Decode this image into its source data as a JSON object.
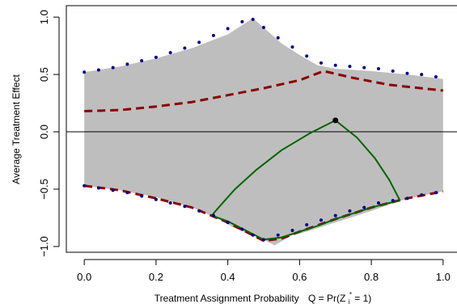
{
  "chart_data": {
    "type": "line",
    "title": "",
    "xlabel": "Treatment Assignment Probability",
    "xlabel_formula": {
      "prefix": "Q = Pr(Z",
      "subscript": "i",
      "superscript": "*",
      "suffix": " = 1)"
    },
    "ylabel": "Average Treatment Effect",
    "xlim": [
      -0.05,
      1.05
    ],
    "ylim": [
      -1.05,
      1.1
    ],
    "x_ticks": [
      0.0,
      0.2,
      0.4,
      0.6,
      0.8,
      1.0
    ],
    "x_tick_labels": [
      "0.0",
      "0.2",
      "0.4",
      "0.6",
      "0.8",
      "1.0"
    ],
    "y_ticks": [
      -1.0,
      -0.5,
      0.0,
      0.5,
      1.0
    ],
    "y_tick_labels": [
      "−1.0",
      "−0.5",
      "0.0",
      "0.5",
      "1.0"
    ],
    "reference_line_y": 0.0,
    "colors": {
      "band": "#bebebe",
      "dotted_bounds": "#00008b",
      "dashed_bounds": "#8b0000",
      "green_curve": "#006400",
      "point": "#000000",
      "reference_line": "#000000"
    },
    "series": [
      {
        "style": "band",
        "x": [
          0.0,
          0.1,
          0.2,
          0.3,
          0.4,
          0.47,
          0.55,
          0.6,
          0.65,
          0.7,
          0.8,
          0.9,
          1.0,
          1.0,
          0.95,
          0.88,
          0.8,
          0.7,
          0.62,
          0.58,
          0.53,
          0.5,
          0.42,
          0.36,
          0.3,
          0.2,
          0.1,
          0.0
        ],
        "y": [
          0.52,
          0.57,
          0.64,
          0.73,
          0.85,
          0.99,
          0.77,
          0.67,
          0.58,
          0.55,
          0.53,
          0.5,
          0.46,
          -0.52,
          -0.55,
          -0.6,
          -0.69,
          -0.79,
          -0.87,
          -0.9,
          -0.99,
          -0.94,
          -0.84,
          -0.74,
          -0.66,
          -0.57,
          -0.51,
          -0.47
        ]
      },
      {
        "style": "dotted",
        "x": [
          0.0,
          0.04,
          0.08,
          0.12,
          0.16,
          0.2,
          0.24,
          0.28,
          0.32,
          0.36,
          0.4,
          0.44,
          0.47,
          0.5,
          0.54,
          0.58,
          0.62,
          0.66,
          0.7,
          0.74,
          0.78,
          0.82,
          0.86,
          0.9,
          0.94,
          0.98
        ],
        "y": [
          0.52,
          0.54,
          0.56,
          0.59,
          0.62,
          0.65,
          0.69,
          0.73,
          0.78,
          0.84,
          0.9,
          0.96,
          0.98,
          0.91,
          0.82,
          0.74,
          0.66,
          0.6,
          0.58,
          0.57,
          0.56,
          0.55,
          0.53,
          0.51,
          0.5,
          0.48
        ]
      },
      {
        "style": "dotted",
        "x": [
          0.0,
          0.04,
          0.08,
          0.12,
          0.16,
          0.2,
          0.24,
          0.28,
          0.32,
          0.36,
          0.4,
          0.44,
          0.47,
          0.5,
          0.54,
          0.58,
          0.62,
          0.66,
          0.7,
          0.74,
          0.78,
          0.82,
          0.86,
          0.9,
          0.94,
          0.98
        ],
        "y": [
          -0.47,
          -0.49,
          -0.51,
          -0.53,
          -0.56,
          -0.59,
          -0.62,
          -0.65,
          -0.69,
          -0.73,
          -0.79,
          -0.85,
          -0.9,
          -0.94,
          -0.9,
          -0.86,
          -0.81,
          -0.77,
          -0.73,
          -0.69,
          -0.66,
          -0.62,
          -0.6,
          -0.58,
          -0.55,
          -0.53
        ]
      },
      {
        "style": "dashed",
        "x": [
          0.0,
          0.1,
          0.2,
          0.3,
          0.4,
          0.5,
          0.6,
          0.667,
          0.75,
          0.85,
          1.0
        ],
        "y": [
          0.18,
          0.19,
          0.22,
          0.26,
          0.32,
          0.38,
          0.45,
          0.53,
          0.47,
          0.41,
          0.36
        ]
      },
      {
        "style": "dashed",
        "x": [
          0.0,
          0.1,
          0.2,
          0.3,
          0.4,
          0.5,
          0.55,
          0.6,
          0.7,
          0.8,
          0.9,
          1.0
        ],
        "y": [
          -0.47,
          -0.51,
          -0.58,
          -0.66,
          -0.79,
          -0.95,
          -0.93,
          -0.87,
          -0.76,
          -0.66,
          -0.58,
          -0.52
        ]
      },
      {
        "style": "solid",
        "x": [
          0.7,
          0.63,
          0.55,
          0.48,
          0.42,
          0.38,
          0.355
        ],
        "y": [
          0.1,
          -0.01,
          -0.16,
          -0.33,
          -0.5,
          -0.64,
          -0.73
        ]
      },
      {
        "style": "solid",
        "x": [
          0.7,
          0.76,
          0.81,
          0.85,
          0.88
        ],
        "y": [
          0.1,
          -0.05,
          -0.23,
          -0.42,
          -0.6
        ]
      },
      {
        "style": "solid",
        "x": [
          0.355,
          0.4,
          0.45,
          0.5,
          0.55,
          0.6,
          0.65,
          0.7,
          0.75,
          0.8,
          0.85,
          0.88
        ],
        "y": [
          -0.73,
          -0.78,
          -0.86,
          -0.94,
          -0.92,
          -0.87,
          -0.82,
          -0.76,
          -0.71,
          -0.66,
          -0.62,
          -0.6
        ]
      }
    ],
    "points": [
      {
        "x": 0.7,
        "y": 0.1
      }
    ]
  }
}
